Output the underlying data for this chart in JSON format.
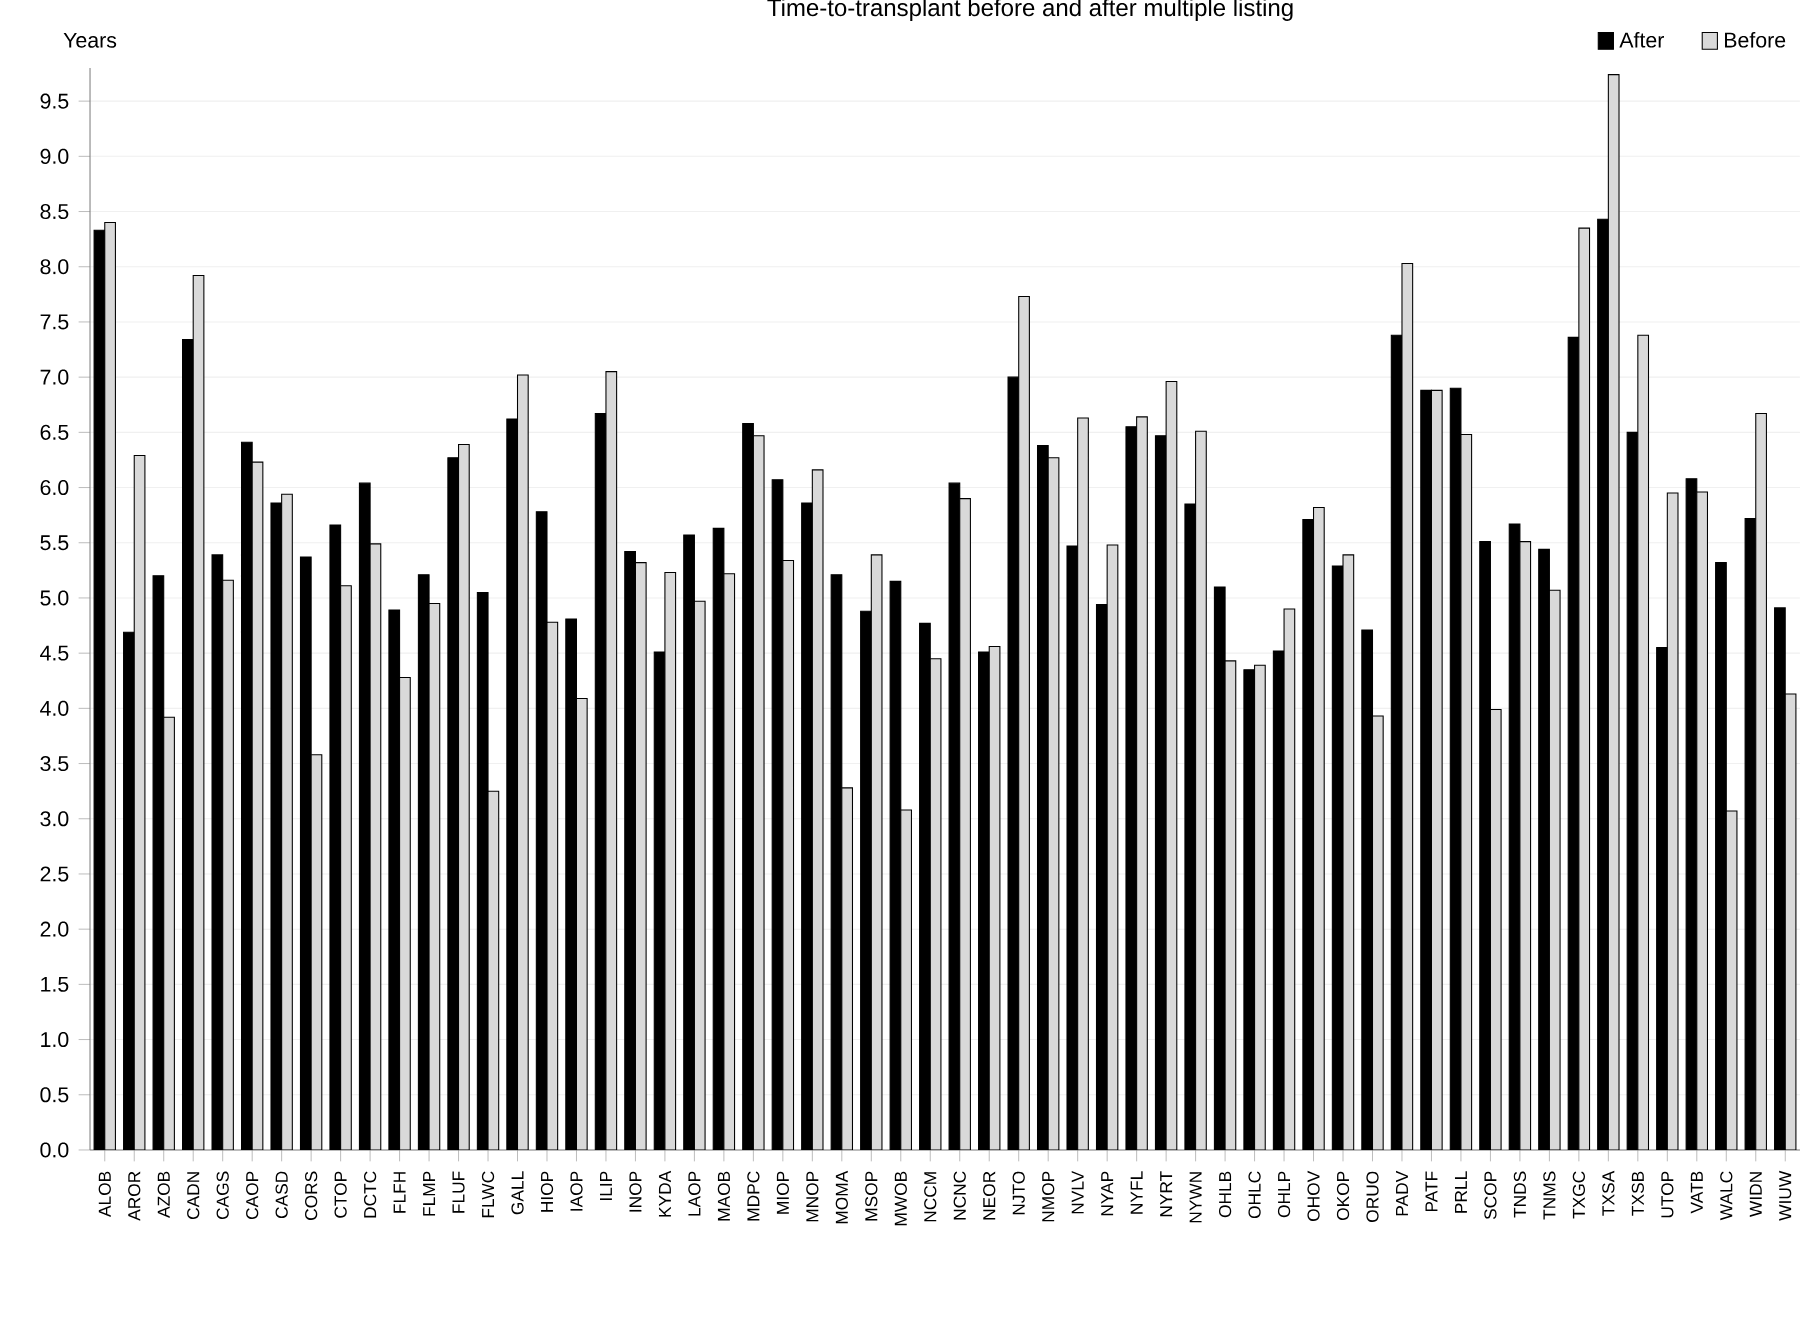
{
  "chart_data": {
    "type": "bar",
    "title": "Time-to-transplant before and after multiple listing",
    "ylabel": "Years",
    "categories": [
      "ALOB",
      "AROR",
      "AZOB",
      "CADN",
      "CAGS",
      "CAOP",
      "CASD",
      "CORS",
      "CTOP",
      "DCTC",
      "FLFH",
      "FLMP",
      "FLUF",
      "FLWC",
      "GALL",
      "HIOP",
      "IAOP",
      "ILIP",
      "INOP",
      "KYDA",
      "LAOP",
      "MAOB",
      "MDPC",
      "MIOP",
      "MNOP",
      "MOMA",
      "MSOP",
      "MWOB",
      "NCCM",
      "NCNC",
      "NEOR",
      "NJTO",
      "NMOP",
      "NVLV",
      "NYAP",
      "NYFL",
      "NYRT",
      "NYWN",
      "OHLB",
      "OHLC",
      "OHLP",
      "OHOV",
      "OKOP",
      "ORUO",
      "PADV",
      "PATF",
      "PRLL",
      "SCOP",
      "TNDS",
      "TNMS",
      "TXGC",
      "TXSA",
      "TXSB",
      "UTOP",
      "VATB",
      "WALC",
      "WIDN",
      "WIUW"
    ],
    "series": [
      {
        "name": "After",
        "color": "#000000",
        "values": [
          8.33,
          4.69,
          5.2,
          7.34,
          5.39,
          6.41,
          5.86,
          5.37,
          5.66,
          6.04,
          4.89,
          5.21,
          6.27,
          5.05,
          6.62,
          5.78,
          4.81,
          6.67,
          5.42,
          4.51,
          5.57,
          5.63,
          6.58,
          6.07,
          5.86,
          5.21,
          4.88,
          5.15,
          4.77,
          6.04,
          4.51,
          7.0,
          6.38,
          5.47,
          4.94,
          6.55,
          6.47,
          5.85,
          5.1,
          4.35,
          4.52,
          5.71,
          5.29,
          4.71,
          7.38,
          6.88,
          6.9,
          5.51,
          5.67,
          5.44,
          7.36,
          8.43,
          6.5,
          4.55,
          6.08,
          5.32,
          5.72,
          4.91
        ]
      },
      {
        "name": "Before",
        "color": "#d9d9d9",
        "values": [
          8.4,
          6.29,
          3.92,
          7.92,
          5.16,
          6.23,
          5.94,
          3.58,
          5.11,
          5.49,
          4.28,
          4.95,
          6.39,
          3.25,
          7.02,
          4.78,
          4.09,
          7.05,
          5.32,
          5.23,
          4.97,
          5.22,
          6.47,
          5.34,
          6.16,
          3.28,
          5.39,
          3.08,
          4.45,
          5.9,
          4.56,
          7.73,
          6.27,
          6.63,
          5.48,
          6.64,
          6.96,
          6.51,
          4.43,
          4.39,
          4.9,
          5.82,
          5.39,
          3.93,
          8.03,
          6.88,
          6.48,
          3.99,
          5.51,
          5.07,
          8.35,
          9.74,
          7.38,
          5.95,
          5.96,
          3.07,
          6.67,
          4.13
        ]
      }
    ],
    "ylim": [
      0,
      9.8
    ],
    "yticks": [
      {
        "value": 0,
        "label": "0.0"
      },
      {
        "value": 0.5,
        "label": "0.5"
      },
      {
        "value": 1,
        "label": "1.0"
      },
      {
        "value": 1.5,
        "label": "1.5"
      },
      {
        "value": 2,
        "label": "2.0"
      },
      {
        "value": 2.5,
        "label": "2.5"
      },
      {
        "value": 3,
        "label": "3.0"
      },
      {
        "value": 3.5,
        "label": "3.5"
      },
      {
        "value": 4,
        "label": "4.0"
      },
      {
        "value": 4.5,
        "label": "4.5"
      },
      {
        "value": 5,
        "label": "5.0"
      },
      {
        "value": 5.5,
        "label": "5.5"
      },
      {
        "value": 6,
        "label": "6.0"
      },
      {
        "value": 6.5,
        "label": "6.5"
      },
      {
        "value": 7,
        "label": "7.0"
      },
      {
        "value": 7.5,
        "label": "7.5"
      },
      {
        "value": 8,
        "label": "8.0"
      },
      {
        "value": 8.5,
        "label": "8.5"
      },
      {
        "value": 9,
        "label": "9.0"
      },
      {
        "value": 9.5,
        "label": "9.5"
      }
    ],
    "grid": "y",
    "legend": "top right"
  }
}
